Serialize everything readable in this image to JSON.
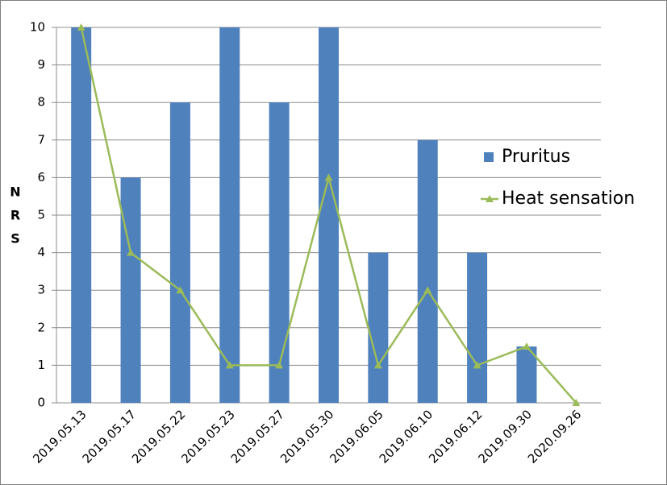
{
  "chart_data": {
    "type": "bar",
    "ylabel": "NRS",
    "categories": [
      "2019.05.13",
      "2019.05.17",
      "2019.05.22",
      "2019.05.23",
      "2019.05.27",
      "2019.05.30",
      "2019.06.05",
      "2019.06.10",
      "2019.06.12",
      "2019.09.30",
      "2020.09.26"
    ],
    "series": [
      {
        "name": "Pruritus",
        "type": "bar",
        "color": "#4f81bd",
        "values": [
          10,
          6,
          8,
          10,
          8,
          10,
          4,
          7,
          4,
          1.5,
          0
        ]
      },
      {
        "name": "Heat sensation",
        "type": "line",
        "color": "#9bbb59",
        "values": [
          10,
          4,
          3,
          1,
          1,
          6,
          1,
          3,
          1,
          1.5,
          0
        ]
      }
    ],
    "ylim": [
      0,
      10
    ],
    "yticks": [
      0,
      1,
      2,
      3,
      4,
      5,
      6,
      7,
      8,
      9,
      10
    ],
    "grid": true,
    "legend": "right"
  }
}
